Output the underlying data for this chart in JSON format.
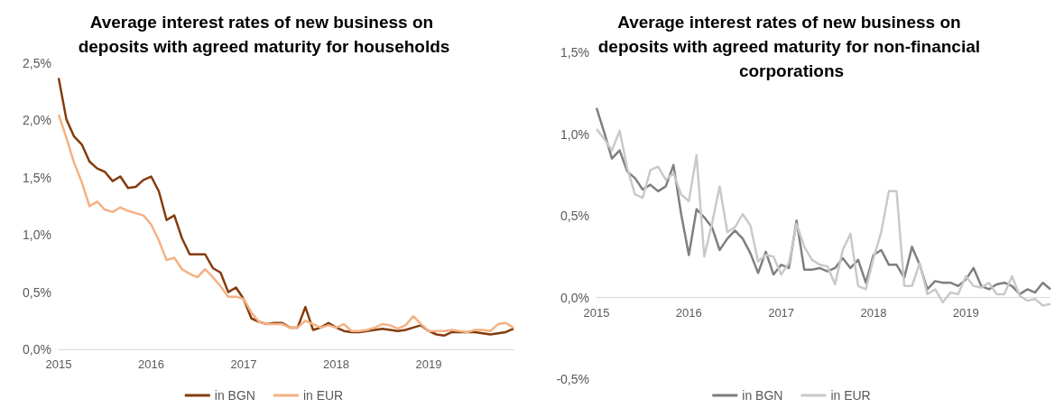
{
  "chart_data": [
    {
      "type": "line",
      "title": "Average interest rates of new business on deposits with agreed maturity for households",
      "categories": [
        "2015",
        null,
        null,
        null,
        null,
        null,
        null,
        null,
        null,
        null,
        null,
        null,
        "2016",
        null,
        null,
        null,
        null,
        null,
        null,
        null,
        null,
        null,
        null,
        null,
        "2017",
        null,
        null,
        null,
        null,
        null,
        null,
        null,
        null,
        null,
        null,
        null,
        "2018",
        null,
        null,
        null,
        null,
        null,
        null,
        null,
        null,
        null,
        null,
        null,
        "2019",
        null,
        null,
        null,
        null,
        null,
        null,
        null,
        null,
        null,
        null,
        null
      ],
      "series": [
        {
          "name": "in BGN",
          "color": "#843c0c",
          "values": [
            2.37,
            2.01,
            1.86,
            1.79,
            1.64,
            1.58,
            1.55,
            1.47,
            1.51,
            1.41,
            1.42,
            1.48,
            1.51,
            1.38,
            1.13,
            1.17,
            0.97,
            0.83,
            0.83,
            0.83,
            0.71,
            0.67,
            0.5,
            0.54,
            0.44,
            0.27,
            0.24,
            0.22,
            0.23,
            0.23,
            0.19,
            0.19,
            0.37,
            0.17,
            0.19,
            0.23,
            0.19,
            0.16,
            0.15,
            0.15,
            0.16,
            0.17,
            0.18,
            0.17,
            0.16,
            0.17,
            0.19,
            0.21,
            0.16,
            0.13,
            0.12,
            0.15,
            0.15,
            0.15,
            0.15,
            0.14,
            0.13,
            0.14,
            0.15,
            0.18
          ]
        },
        {
          "name": "in EUR",
          "color": "#f4b183",
          "values": [
            2.05,
            1.85,
            1.63,
            1.46,
            1.25,
            1.29,
            1.22,
            1.2,
            1.24,
            1.21,
            1.19,
            1.17,
            1.09,
            0.95,
            0.78,
            0.8,
            0.7,
            0.66,
            0.63,
            0.7,
            0.63,
            0.55,
            0.46,
            0.46,
            0.44,
            0.32,
            0.24,
            0.22,
            0.22,
            0.22,
            0.19,
            0.19,
            0.25,
            0.22,
            0.19,
            0.21,
            0.19,
            0.22,
            0.16,
            0.16,
            0.17,
            0.19,
            0.22,
            0.21,
            0.18,
            0.21,
            0.29,
            0.22,
            0.16,
            0.16,
            0.16,
            0.17,
            0.16,
            0.15,
            0.17,
            0.17,
            0.16,
            0.22,
            0.23,
            0.19
          ]
        }
      ],
      "ylim": [
        0,
        2.5
      ],
      "yticks": [
        {
          "value": 0,
          "label": "0,0%"
        },
        {
          "value": 0.5,
          "label": "0,5%"
        },
        {
          "value": 1,
          "label": "1,0%"
        },
        {
          "value": 1.5,
          "label": "1,5%"
        },
        {
          "value": 2,
          "label": "2,0%"
        },
        {
          "value": 2.5,
          "label": "2,5%"
        }
      ],
      "legend": "bottom"
    },
    {
      "type": "line",
      "title": "Average interest rates of new business on deposits with agreed maturity for non-financial corporations",
      "categories": [
        "2015",
        null,
        null,
        null,
        null,
        null,
        null,
        null,
        null,
        null,
        null,
        null,
        "2016",
        null,
        null,
        null,
        null,
        null,
        null,
        null,
        null,
        null,
        null,
        null,
        "2017",
        null,
        null,
        null,
        null,
        null,
        null,
        null,
        null,
        null,
        null,
        null,
        "2018",
        null,
        null,
        null,
        null,
        null,
        null,
        null,
        null,
        null,
        null,
        null,
        "2019",
        null,
        null,
        null,
        null,
        null,
        null,
        null,
        null,
        null,
        null,
        null
      ],
      "series": [
        {
          "name": "in BGN",
          "color": "#7f7f7f",
          "values": [
            1.16,
            1.01,
            0.85,
            0.9,
            0.77,
            0.73,
            0.66,
            0.69,
            0.65,
            0.68,
            0.81,
            0.51,
            0.26,
            0.54,
            0.49,
            0.43,
            0.29,
            0.36,
            0.41,
            0.36,
            0.27,
            0.15,
            0.28,
            0.14,
            0.2,
            0.18,
            0.47,
            0.17,
            0.17,
            0.18,
            0.16,
            0.18,
            0.24,
            0.18,
            0.23,
            0.09,
            0.26,
            0.29,
            0.2,
            0.2,
            0.12,
            0.31,
            0.2,
            0.05,
            0.1,
            0.09,
            0.09,
            0.07,
            0.11,
            0.18,
            0.07,
            0.05,
            0.08,
            0.09,
            0.07,
            0.02,
            0.05,
            0.03,
            0.09,
            0.05
          ]
        },
        {
          "name": "in EUR",
          "color": "#c9c9c9",
          "values": [
            1.03,
            0.97,
            0.9,
            1.02,
            0.79,
            0.63,
            0.61,
            0.78,
            0.8,
            0.72,
            0.76,
            0.63,
            0.59,
            0.87,
            0.25,
            0.45,
            0.68,
            0.4,
            0.43,
            0.51,
            0.44,
            0.22,
            0.26,
            0.25,
            0.14,
            0.21,
            0.45,
            0.31,
            0.23,
            0.2,
            0.19,
            0.08,
            0.29,
            0.39,
            0.07,
            0.05,
            0.24,
            0.4,
            0.65,
            0.65,
            0.07,
            0.07,
            0.21,
            0.02,
            0.05,
            -0.03,
            0.03,
            0.02,
            0.13,
            0.07,
            0.06,
            0.09,
            0.02,
            0.02,
            0.13,
            0.01,
            -0.02,
            -0.01,
            -0.05,
            -0.04
          ]
        }
      ],
      "ylim": [
        -0.5,
        1.5
      ],
      "yticks": [
        {
          "value": -0.5,
          "label": "-0,5%"
        },
        {
          "value": 0,
          "label": "0,0%"
        },
        {
          "value": 0.5,
          "label": "0,5%"
        },
        {
          "value": 1,
          "label": "1,0%"
        },
        {
          "value": 1.5,
          "label": "1,5%"
        }
      ],
      "legend": "bottom"
    }
  ]
}
